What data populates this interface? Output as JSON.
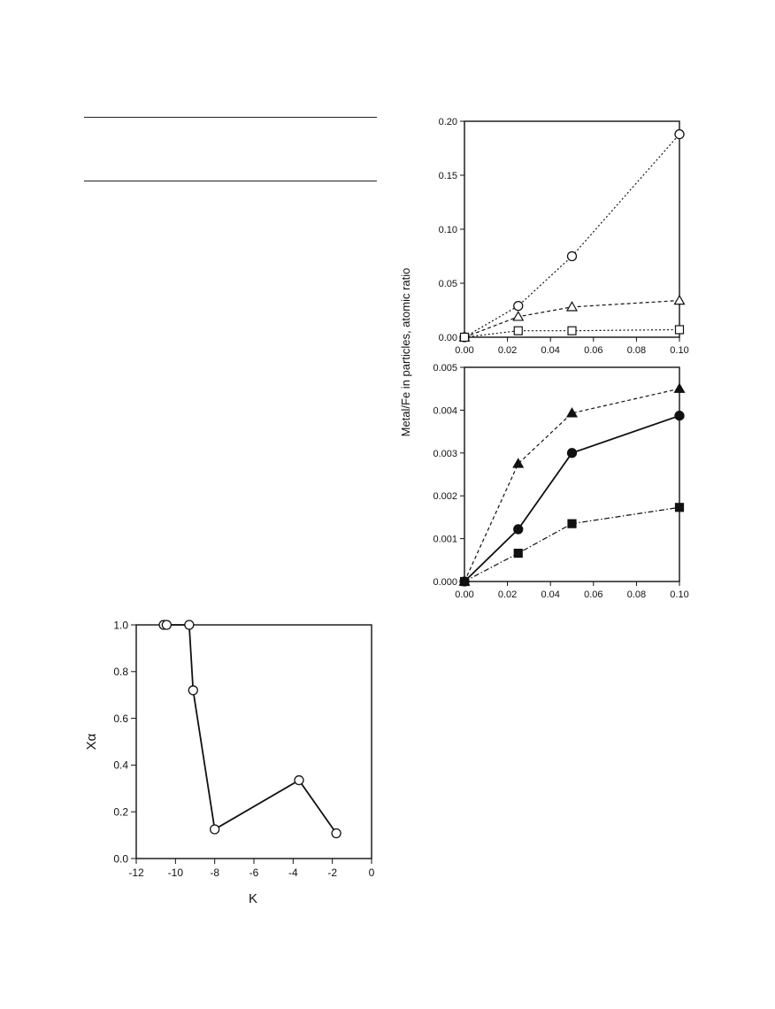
{
  "chart_data": [
    {
      "id": "top",
      "type": "line",
      "x": [
        0,
        0.025,
        0.05,
        0.1
      ],
      "xlim": [
        0,
        0.1
      ],
      "ylim": [
        0,
        0.2
      ],
      "x_ticks": [
        0,
        0.02,
        0.04,
        0.06,
        0.08,
        0.1
      ],
      "x_tick_labels": [
        "0.00",
        "0.02",
        "0.04",
        "0.06",
        "0.08",
        "0.10"
      ],
      "y_ticks": [
        0,
        0.05,
        0.1,
        0.15,
        0.2
      ],
      "y_tick_labels": [
        "0.00",
        "0.05",
        "0.10",
        "0.15",
        "0.20"
      ],
      "grid": false,
      "series": [
        {
          "marker": "circle-open",
          "line": "dotted",
          "values": [
            0,
            0.029,
            0.075,
            0.188
          ]
        },
        {
          "marker": "triangle-open",
          "line": "dashed",
          "values": [
            0,
            0.019,
            0.028,
            0.034
          ]
        },
        {
          "marker": "square-open",
          "line": "dotted",
          "values": [
            0,
            0.006,
            0.006,
            0.007
          ]
        }
      ]
    },
    {
      "id": "bottom",
      "type": "line",
      "x": [
        0,
        0.025,
        0.05,
        0.1
      ],
      "xlim": [
        0,
        0.1
      ],
      "ylim": [
        0,
        0.005
      ],
      "x_ticks": [
        0,
        0.02,
        0.04,
        0.06,
        0.08,
        0.1
      ],
      "x_tick_labels": [
        "0.00",
        "0.02",
        "0.04",
        "0.06",
        "0.08",
        "0.10"
      ],
      "y_ticks": [
        0,
        0.001,
        0.002,
        0.003,
        0.004,
        0.005
      ],
      "y_tick_labels": [
        "0.000",
        "0.001",
        "0.002",
        "0.003",
        "0.004",
        "0.005"
      ],
      "grid": false,
      "series": [
        {
          "marker": "triangle-filled",
          "line": "dashed",
          "values": [
            0,
            0.00275,
            0.00393,
            0.0045
          ]
        },
        {
          "marker": "circle-filled",
          "line": "solid",
          "values": [
            0,
            0.00122,
            0.003,
            0.00387
          ]
        },
        {
          "marker": "square-filled",
          "line": "dashdot",
          "values": [
            0,
            0.00066,
            0.00135,
            0.00173
          ]
        }
      ]
    },
    {
      "id": "k-plot",
      "type": "line",
      "xlabel": "K",
      "ylabel": "Xα",
      "xlim": [
        -12,
        0
      ],
      "ylim": [
        0,
        1.0
      ],
      "x_ticks": [
        -12,
        -10,
        -8,
        -6,
        -4,
        -2,
        0
      ],
      "x_tick_labels": [
        "-12",
        "-10",
        "-8",
        "-6",
        "-4",
        "-2",
        "0"
      ],
      "y_ticks": [
        0,
        0.2,
        0.4,
        0.6,
        0.8,
        1.0
      ],
      "y_tick_labels": [
        "0.0",
        "0.2",
        "0.4",
        "0.6",
        "0.8",
        "1.0"
      ],
      "grid": false,
      "series": [
        {
          "marker": "circle-open",
          "line": "solid",
          "points": [
            [
              -10.6,
              1.0
            ],
            [
              -10.45,
              1.0
            ],
            [
              -9.3,
              1.0
            ],
            [
              -9.1,
              0.72
            ],
            [
              -8.0,
              0.125
            ],
            [
              -3.7,
              0.335
            ],
            [
              -1.8,
              0.108
            ]
          ]
        }
      ]
    }
  ],
  "shared_ylabel": "Metal/Fe in particles, atomic ratio"
}
